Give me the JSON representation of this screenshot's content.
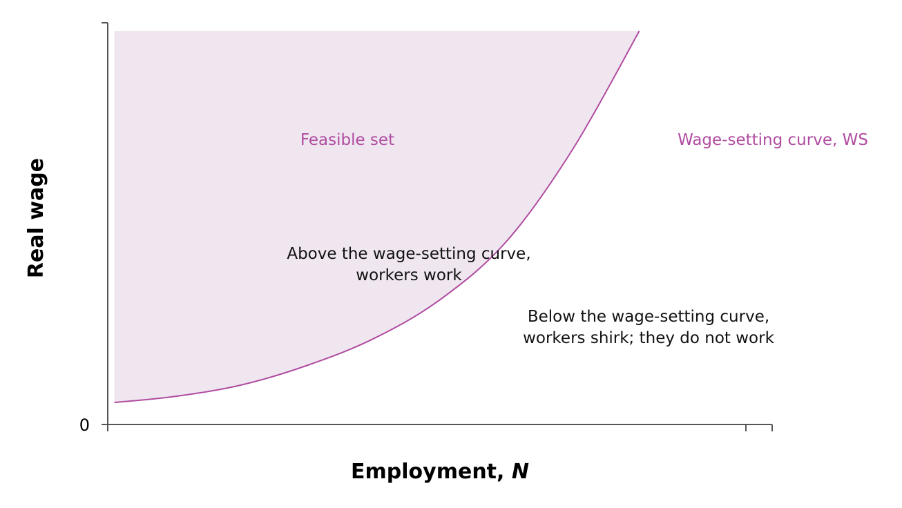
{
  "chart_data": {
    "type": "area",
    "xlabel": "Employment, ",
    "xlabel_italic": "N",
    "ylabel": "Real wage",
    "y_origin_label": "0",
    "xlim": [
      0,
      1
    ],
    "ylim": [
      0,
      1
    ],
    "grid": false,
    "series": [
      {
        "name": "Wage-setting curve, WS",
        "x": [
          0.01,
          0.1,
          0.2,
          0.3,
          0.4,
          0.5,
          0.6,
          0.7,
          0.8,
          0.9
        ],
        "y": [
          0.056,
          0.071,
          0.1,
          0.15,
          0.218,
          0.317,
          0.465,
          0.7,
          1.0,
          1.0
        ]
      }
    ],
    "shaded_region": {
      "label": "Feasible set",
      "position": "above-left of curve"
    },
    "annotations": {
      "above_line1": "Above the wage-setting curve,",
      "above_line2": "workers work",
      "below_line1": "Below the wage-setting curve,",
      "below_line2": "workers shirk; they do not work"
    },
    "colors": {
      "curve": "#b04ca0",
      "fill": "#efe6f0",
      "axis": "#555555",
      "text": "#111111"
    }
  }
}
